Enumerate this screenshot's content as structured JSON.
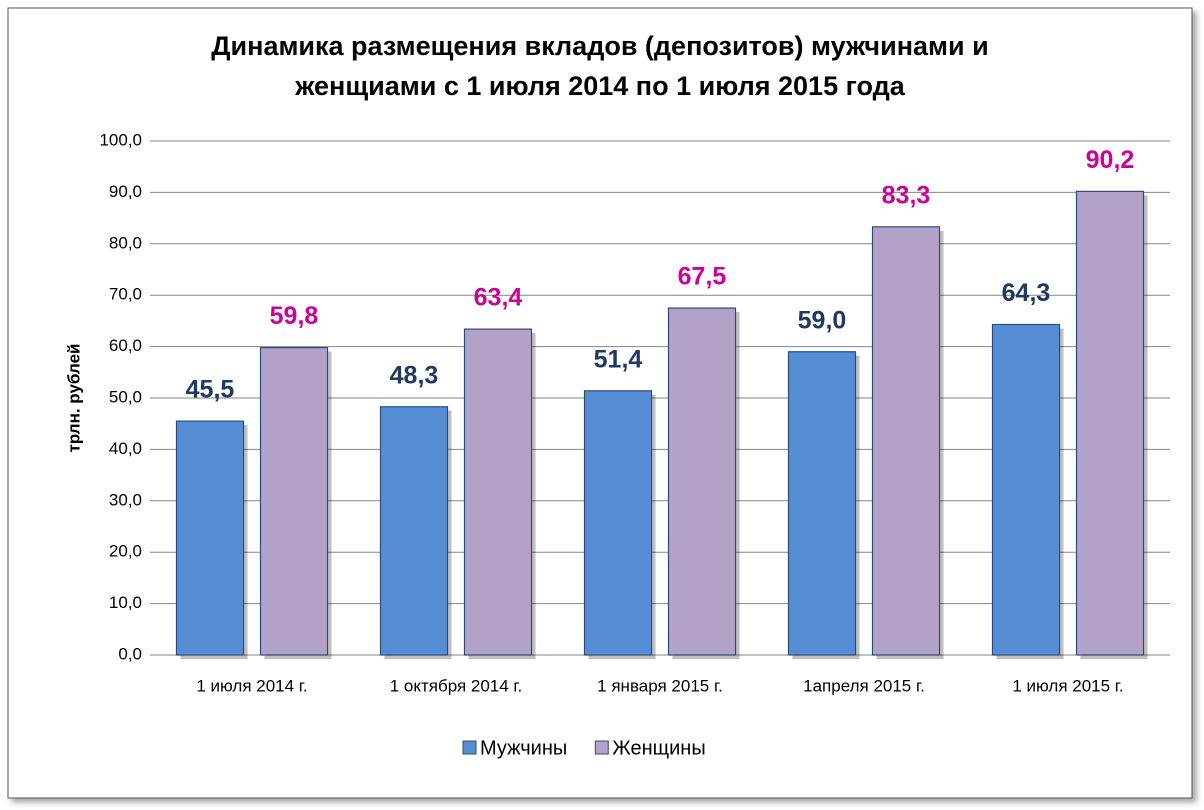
{
  "chart_data": {
    "type": "bar",
    "title": [
      "Динамика размещения вкладов (депозитов) мужчинами и",
      "женщиами с 1 июля 2014 по 1 июля 2015 года"
    ],
    "y_label": "трлн. рублей",
    "categories": [
      "1 июля 2014 г.",
      "1 октября 2014 г.",
      "1 января 2015 г.",
      "1апреля  2015 г.",
      "1 июля 2015 г."
    ],
    "series": [
      {
        "name": "Мужчины",
        "color": "#558ed5",
        "label_color": "#1f3864",
        "values": [
          45.5,
          48.3,
          51.4,
          59.0,
          64.3
        ],
        "value_labels": [
          "45,5",
          "48,3",
          "51,4",
          "59,0",
          "64,3"
        ]
      },
      {
        "name": "Женщины",
        "color": "#b3a2c7",
        "label_color": "#cc0099",
        "values": [
          59.8,
          63.4,
          67.5,
          83.3,
          90.2
        ],
        "value_labels": [
          "59,8",
          "63,4",
          "67,5",
          "83,3",
          "90,2"
        ]
      }
    ],
    "ylim": [
      0,
      100
    ],
    "yticks": [
      {
        "value": 0,
        "label": "0,0"
      },
      {
        "value": 10,
        "label": "10,0"
      },
      {
        "value": 20,
        "label": "20,0"
      },
      {
        "value": 30,
        "label": "30,0"
      },
      {
        "value": 40,
        "label": "40,0"
      },
      {
        "value": 50,
        "label": "50,0"
      },
      {
        "value": 60,
        "label": "60,0"
      },
      {
        "value": 70,
        "label": "70,0"
      },
      {
        "value": 80,
        "label": "80,0"
      },
      {
        "value": 90,
        "label": "90,0"
      },
      {
        "value": 100,
        "label": "100,0"
      }
    ],
    "grid": true,
    "legend": "bottom"
  }
}
